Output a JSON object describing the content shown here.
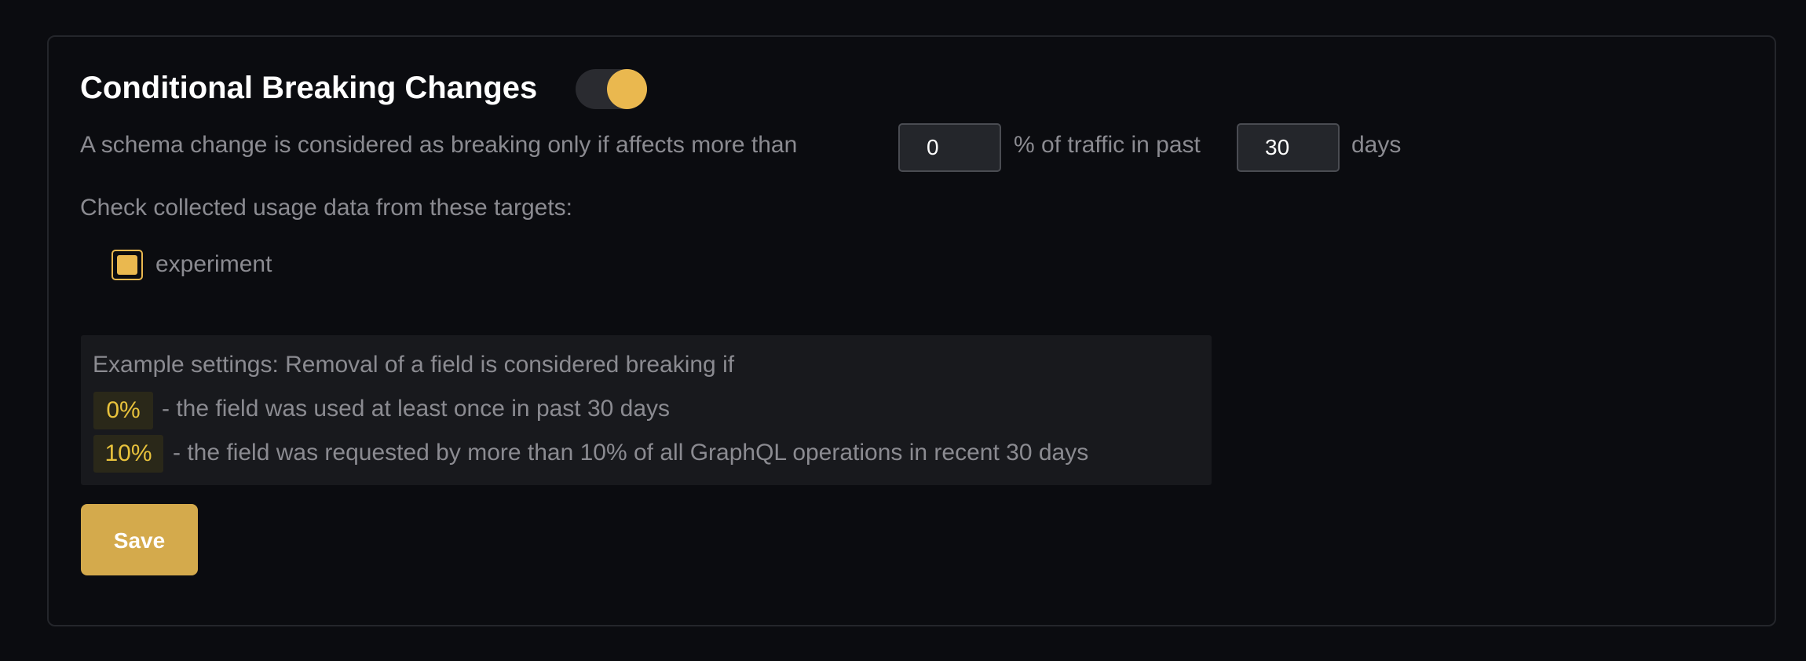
{
  "settings": {
    "title": "Conditional Breaking Changes",
    "enabled": true,
    "accent_color": "#eab84f",
    "description_prefix": "A schema change is considered as breaking only if affects more than",
    "percentage_value": "0",
    "description_middle": "% of traffic in past",
    "days_value": "30",
    "description_suffix": "days",
    "targets_label": "Check collected usage data from these targets:",
    "targets": [
      {
        "label": "experiment",
        "checked": true
      }
    ],
    "example": {
      "heading": "Example settings: Removal of a field is considered breaking if",
      "rows": [
        {
          "badge": "0%",
          "text": "- the field was used at least once in past 30 days"
        },
        {
          "badge": "10%",
          "text": "- the field was requested by more than 10% of all GraphQL operations in recent 30 days"
        }
      ]
    },
    "save_label": "Save"
  }
}
